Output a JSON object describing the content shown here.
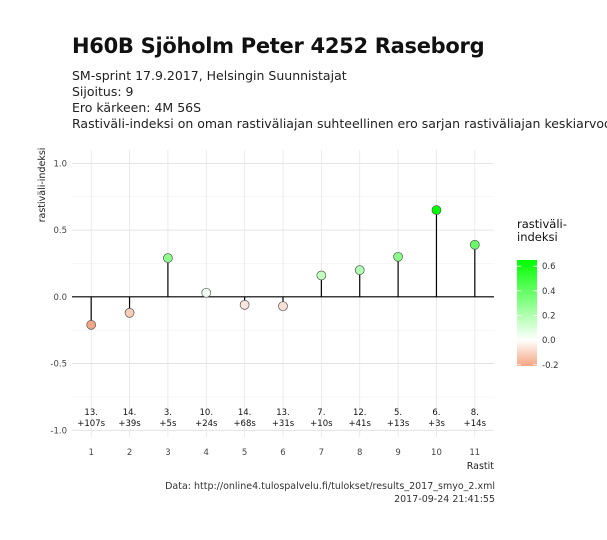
{
  "header": {
    "title": "H60B Sjöholm Peter 4252 Raseborg",
    "subtitle_lines": [
      "SM-sprint 17.9.2017, Helsingin Suunnistajat",
      "Sijoitus: 9",
      "Ero kärkeen: 4M 56S",
      "Rastiväli-indeksi on oman rastiväliajan suhteellinen ero sarjan rastiväliajan keskiarvoon"
    ]
  },
  "caption": {
    "source": "Data: http://online4.tulospalvelu.fi/tulokset/results_2017_smyo_2.xml",
    "timestamp": "2017-09-24 21:41:55"
  },
  "chart_data": {
    "type": "lollipop",
    "xlabel": "Rastit",
    "ylabel": "rastiväli-indeksi",
    "ylim": [
      -1.0,
      1.0
    ],
    "y_ticks": [
      -1.0,
      -0.5,
      0.0,
      0.5,
      1.0
    ],
    "y_tick_labels": [
      "-1.0",
      "-0.5",
      "0.0",
      "0.5",
      "1.0"
    ],
    "x": [
      1,
      2,
      3,
      4,
      5,
      6,
      7,
      8,
      9,
      10,
      11
    ],
    "values": [
      -0.21,
      -0.12,
      0.29,
      0.03,
      -0.06,
      -0.07,
      0.16,
      0.2,
      0.3,
      0.65,
      0.39
    ],
    "annotations": [
      {
        "rank": "13.",
        "diff": "+107s"
      },
      {
        "rank": "14.",
        "diff": "+39s"
      },
      {
        "rank": "3.",
        "diff": "+5s"
      },
      {
        "rank": "10.",
        "diff": "+24s"
      },
      {
        "rank": "14.",
        "diff": "+68s"
      },
      {
        "rank": "13.",
        "diff": "+31s"
      },
      {
        "rank": "7.",
        "diff": "+10s"
      },
      {
        "rank": "12.",
        "diff": "+41s"
      },
      {
        "rank": "5.",
        "diff": "+13s"
      },
      {
        "rank": "6.",
        "diff": "+3s"
      },
      {
        "rank": "8.",
        "diff": "+14s"
      }
    ],
    "grid": true,
    "legend": {
      "title_lines": [
        "rastiväli-",
        "indeksi"
      ],
      "placement": "right",
      "ticks": [
        0.6,
        0.4,
        0.2,
        0.0,
        -0.2
      ],
      "tick_labels": [
        "0.6",
        "0.4",
        "0.2",
        "0.0",
        "-0.2"
      ],
      "range": [
        -0.21,
        0.65
      ]
    },
    "colors": {
      "high": "#00ff00",
      "mid": "#ffffff",
      "low": "#f4a582"
    }
  }
}
